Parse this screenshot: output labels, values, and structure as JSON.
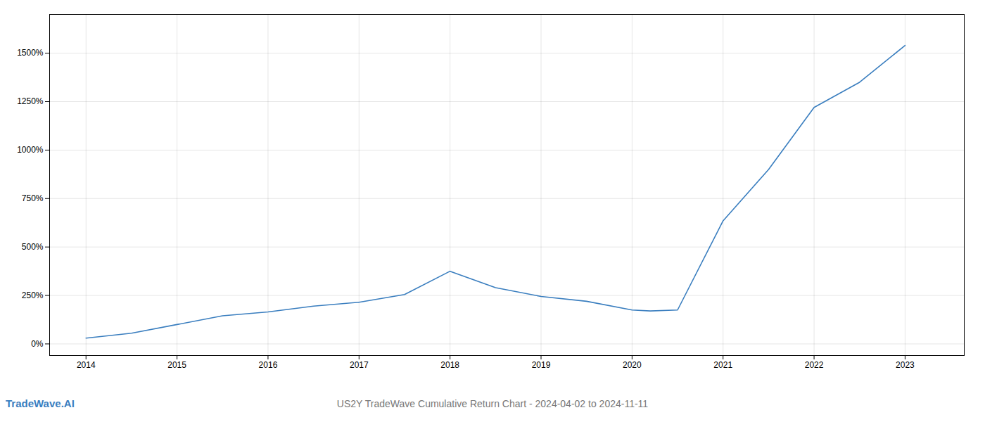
{
  "chart_data": {
    "type": "line",
    "title": "US2Y TradeWave Cumulative Return Chart - 2024-04-02 to 2024-11-11",
    "annotations": [
      "TradeWave.AI"
    ],
    "x": [
      2014.0,
      2014.5,
      2015.0,
      2015.5,
      2016.0,
      2016.5,
      2017.0,
      2017.5,
      2018.0,
      2018.5,
      2019.0,
      2019.5,
      2020.0,
      2020.2,
      2020.5,
      2021.0,
      2021.5,
      2022.0,
      2022.5,
      2023.0
    ],
    "values": [
      30,
      55,
      100,
      145,
      165,
      195,
      215,
      255,
      375,
      290,
      245,
      220,
      175,
      170,
      175,
      635,
      900,
      1220,
      1350,
      1540
    ],
    "color": "#3a7ebf",
    "xlim": [
      2013.6,
      2023.65
    ],
    "ylim": [
      -60,
      1700
    ],
    "xticks": [
      2014,
      2015,
      2016,
      2017,
      2018,
      2019,
      2020,
      2021,
      2022,
      2023
    ],
    "yticks": [
      {
        "value": 0,
        "label": "0%"
      },
      {
        "value": 250,
        "label": "250%"
      },
      {
        "value": 500,
        "label": "500%"
      },
      {
        "value": 750,
        "label": "750%"
      },
      {
        "value": 1000,
        "label": "1000%"
      },
      {
        "value": 1250,
        "label": "1250%"
      },
      {
        "value": 1500,
        "label": "1500%"
      }
    ],
    "grid": true
  }
}
